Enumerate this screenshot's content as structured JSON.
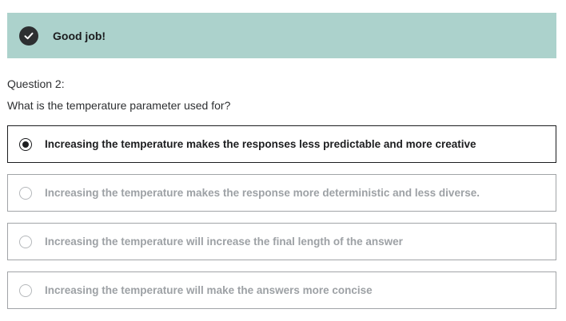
{
  "feedback": {
    "icon": "check-circle-icon",
    "message": "Good job!",
    "bg_color": "#acd2cc"
  },
  "question": {
    "number_label": "Question 2:",
    "text": "What is the temperature parameter used for?"
  },
  "options": [
    {
      "label": "Increasing the temperature makes the responses less predictable and more creative",
      "selected": true
    },
    {
      "label": "Increasing the temperature makes the response more deterministic and less diverse.",
      "selected": false
    },
    {
      "label": "Increasing the temperature will increase the final length of the answer",
      "selected": false
    },
    {
      "label": "Increasing the temperature will make the answers more concise",
      "selected": false
    }
  ]
}
